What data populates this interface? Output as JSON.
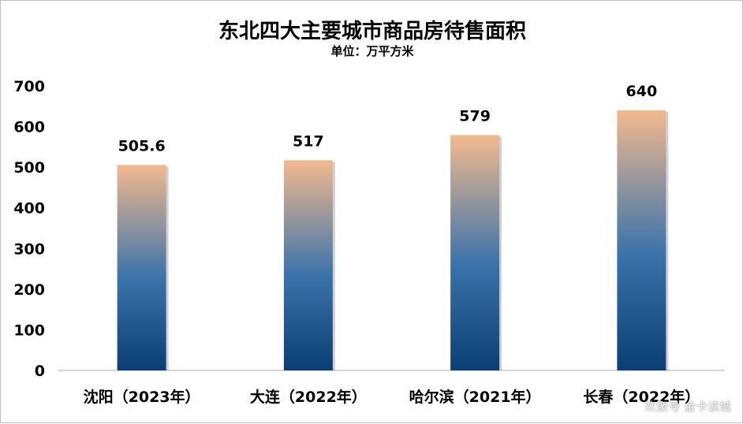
{
  "title": "东北四大主要城市商品房待售面积",
  "subtitle": "单位：万平方米",
  "watermark": "欢聚号 金卡读城",
  "chart_data": {
    "type": "bar",
    "categories": [
      "沈阳（2023年）",
      "大连（2022年）",
      "哈尔滨（2021年）",
      "长春（2022年）"
    ],
    "values": [
      505.6,
      517,
      579,
      640
    ],
    "data_labels": [
      "505.6",
      "517",
      "579",
      "640"
    ],
    "ylim": [
      0,
      700
    ],
    "yticks": [
      0,
      100,
      200,
      300,
      400,
      500,
      600,
      700
    ],
    "grid": false,
    "legend": "none",
    "colors": {
      "bar_top": "#f2b98e",
      "bar_mid": "#3b73aa",
      "bar_bottom": "#0b3f73",
      "axis": "#bfbfbf"
    }
  }
}
